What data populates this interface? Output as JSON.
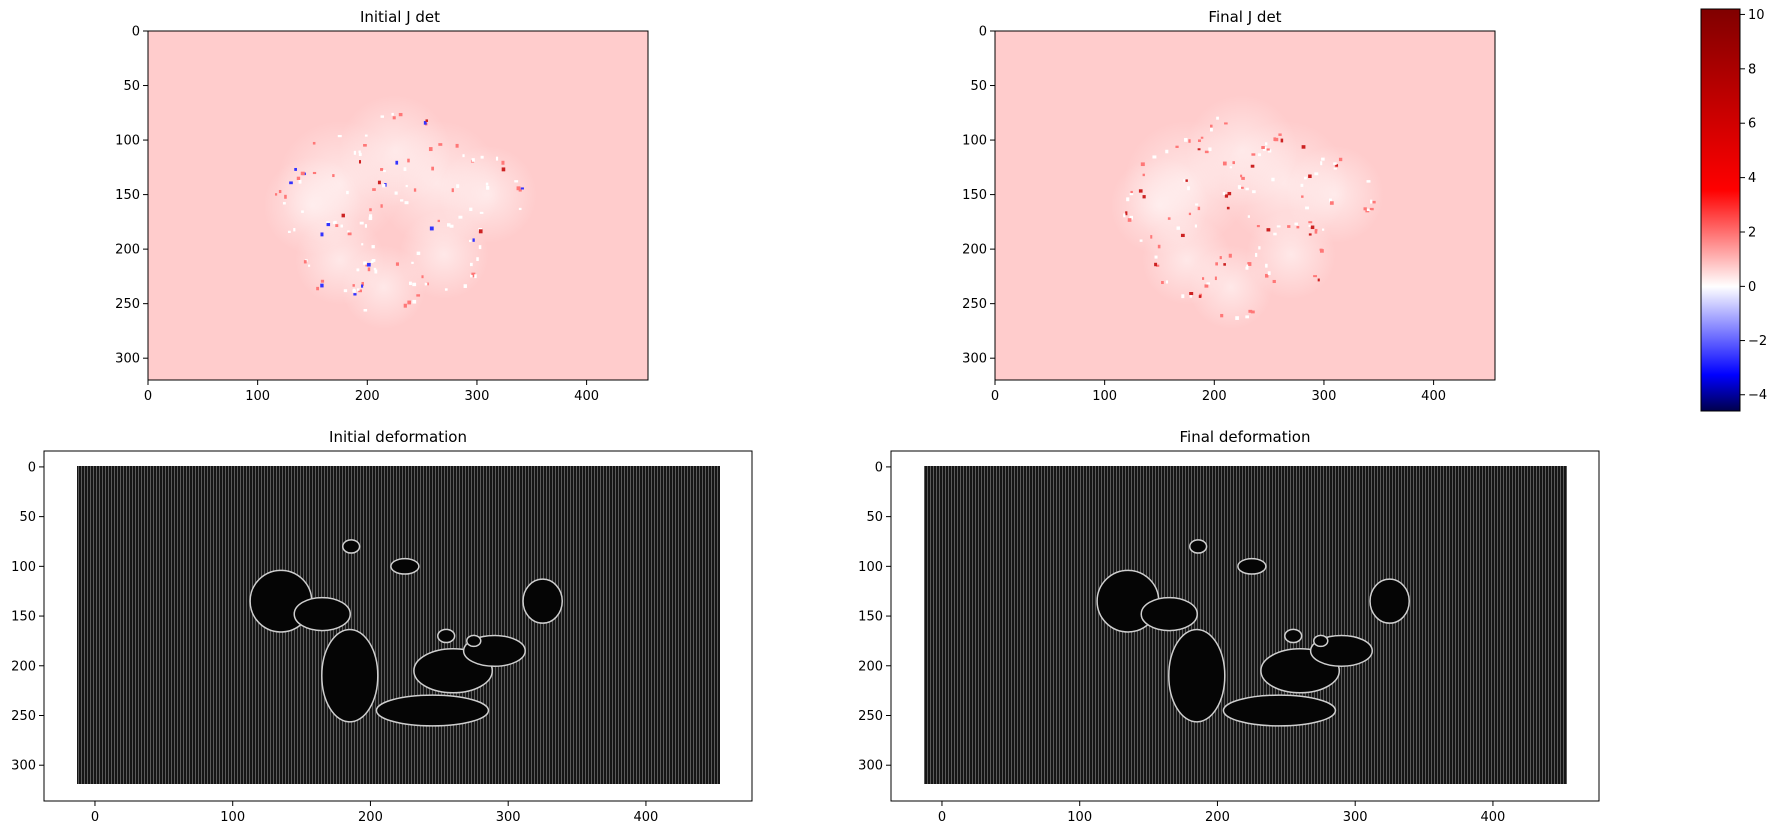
{
  "chart_data": [
    {
      "type": "heatmap",
      "title": "Initial J det",
      "x_ticks": [
        0,
        100,
        200,
        300,
        400
      ],
      "y_ticks": [
        0,
        50,
        100,
        150,
        200,
        250,
        300
      ],
      "xlim": [
        0,
        456
      ],
      "ylim": [
        320,
        0
      ],
      "colormap": "seismic",
      "background_value": 1
    },
    {
      "type": "heatmap",
      "title": "Final J det",
      "x_ticks": [
        0,
        100,
        200,
        300,
        400
      ],
      "y_ticks": [
        0,
        50,
        100,
        150,
        200,
        250,
        300
      ],
      "xlim": [
        0,
        456
      ],
      "ylim": [
        320,
        0
      ],
      "colormap": "seismic",
      "background_value": 1
    },
    {
      "type": "heatmap",
      "title": "Initial deformation",
      "x_ticks": [
        0,
        100,
        200,
        300,
        400
      ],
      "y_ticks": [
        0,
        50,
        100,
        150,
        200,
        250,
        300
      ],
      "xlim": [
        -37,
        477
      ],
      "ylim": [
        336,
        -16
      ],
      "colormap": "gray"
    },
    {
      "type": "heatmap",
      "title": "Final deformation",
      "x_ticks": [
        0,
        100,
        200,
        300,
        400
      ],
      "y_ticks": [
        0,
        50,
        100,
        150,
        200,
        250,
        300
      ],
      "xlim": [
        -37,
        477
      ],
      "ylim": [
        336,
        -16
      ],
      "colormap": "gray"
    }
  ],
  "colorbar": {
    "ticks": [
      10,
      8,
      6,
      4,
      2,
      0,
      -2,
      -4
    ],
    "range": [
      -4.6,
      10.2
    ],
    "center": 0,
    "colors": {
      "low": "#00004c",
      "mid": "#ffffff",
      "high": "#800000"
    }
  }
}
